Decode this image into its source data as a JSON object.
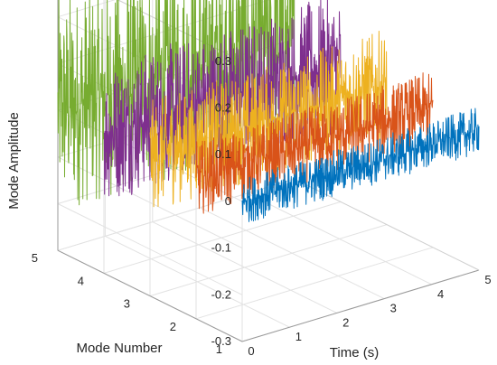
{
  "chart_data": {
    "type": "line",
    "view": "3d",
    "title": "",
    "xlabel": "Time (s)",
    "ylabel": "Mode Number",
    "zlabel": "Mode Amplitude",
    "xlim": [
      0,
      5
    ],
    "ylim": [
      1,
      5
    ],
    "zlim": [
      -0.3,
      0.3
    ],
    "xticks": [
      "0",
      "1",
      "2",
      "3",
      "4",
      "5"
    ],
    "yticks": [
      "1",
      "2",
      "3",
      "4",
      "5"
    ],
    "zticks": [
      "-0.3",
      "-0.2",
      "-0.1",
      "0",
      "0.1",
      "0.2",
      "0.3"
    ],
    "grid": true,
    "series": [
      {
        "mode": 1,
        "color": "#0072BD",
        "t_range": [
          0,
          5
        ],
        "mean": 0.0,
        "amplitude_range": [
          -0.05,
          0.05
        ]
      },
      {
        "mode": 2,
        "color": "#D95319",
        "t_range": [
          0,
          5
        ],
        "mean": 0.0,
        "amplitude_range": [
          -0.08,
          0.08
        ]
      },
      {
        "mode": 3,
        "color": "#EDB120",
        "t_range": [
          0,
          5
        ],
        "mean": 0.0,
        "amplitude_range": [
          -0.12,
          0.12
        ]
      },
      {
        "mode": 4,
        "color": "#7E2F8E",
        "t_range": [
          0,
          5
        ],
        "mean": 0.0,
        "amplitude_range": [
          -0.15,
          0.15
        ]
      },
      {
        "mode": 5,
        "color": "#77AC30",
        "t_range": [
          0,
          5
        ],
        "mean": 0.0,
        "amplitude_range": [
          -0.22,
          0.25
        ]
      }
    ]
  }
}
